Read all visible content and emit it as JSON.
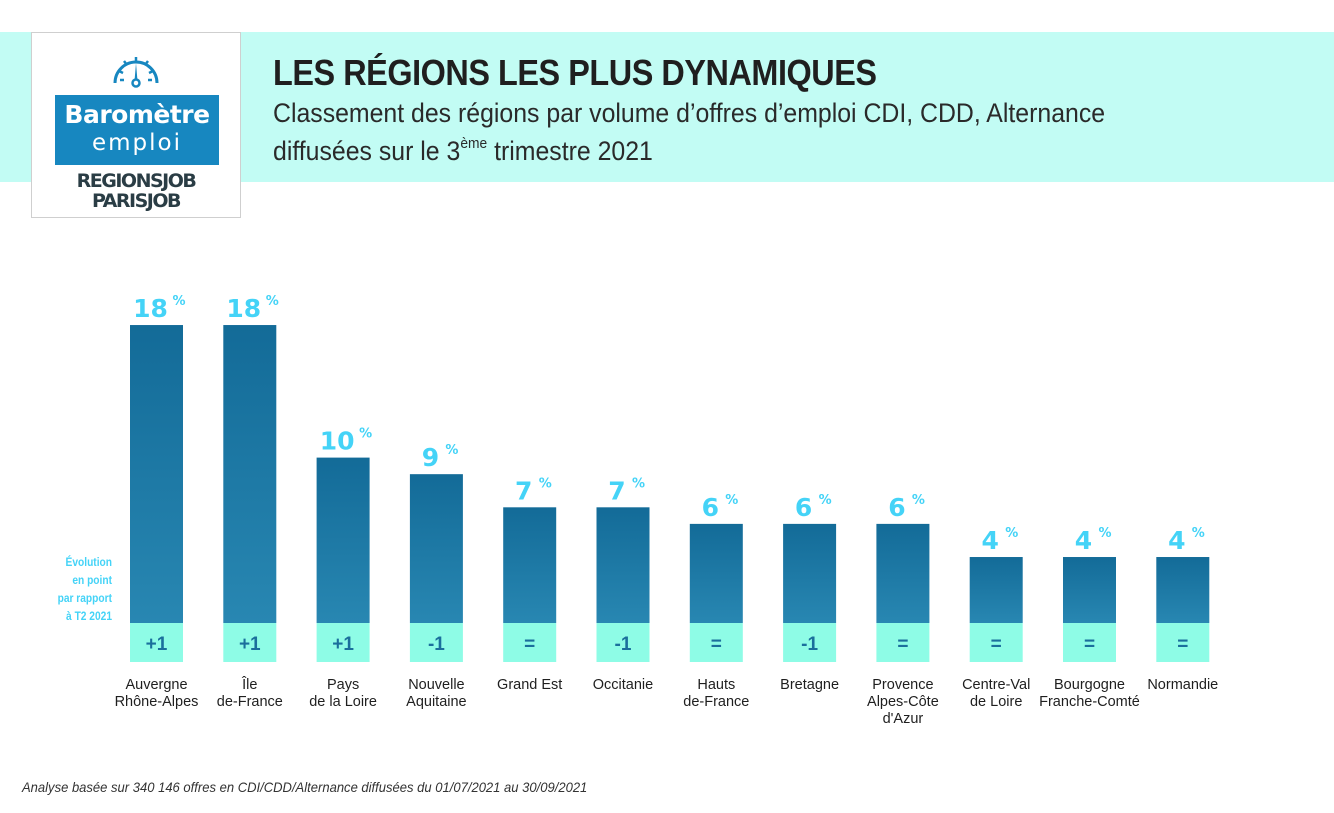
{
  "header": {
    "title": "LES RÉGIONS LES PLUS DYNAMIQUES",
    "subtitle_line1": "Classement des régions par volume d’offres d’emploi CDI, CDD, Alternance",
    "subtitle_line2_pre": "diffusées sur le 3",
    "subtitle_line2_sup": "ème",
    "subtitle_line2_post": " trimestre 2021"
  },
  "logo": {
    "icon": "gauge-icon",
    "line1": "Baromètre",
    "line2": "emploi",
    "brand1": "REGIONSJOB",
    "brand2": "PARISJOB"
  },
  "colors": {
    "header_band": "#c2fcf4",
    "bar_top": "#136b98",
    "bar_bottom": "#2887b2",
    "evolution_band": "#8efce6",
    "value_label": "#44d3f7",
    "evolution_text": "#1b6f9c"
  },
  "evolution_legend": [
    "Évolution",
    "en point",
    "par rapport",
    "à T2 2021"
  ],
  "chart_data": {
    "type": "bar",
    "title": "LES RÉGIONS LES PLUS DYNAMIQUES",
    "xlabel": "",
    "ylabel": "",
    "unit": "%",
    "categories": [
      [
        "Auvergne",
        "Rhône-Alpes"
      ],
      [
        "Île",
        "de-France"
      ],
      [
        "Pays",
        "de la Loire"
      ],
      [
        "Nouvelle",
        "Aquitaine"
      ],
      [
        "Grand Est"
      ],
      [
        "Occitanie"
      ],
      [
        "Hauts",
        "de-France"
      ],
      [
        "Bretagne"
      ],
      [
        "Provence",
        "Alpes-Côte",
        "d'Azur"
      ],
      [
        "Centre-Val",
        "de Loire"
      ],
      [
        "Bourgogne",
        "Franche-Comté"
      ],
      [
        "Normandie"
      ]
    ],
    "values": [
      18,
      18,
      10,
      9,
      7,
      7,
      6,
      6,
      6,
      4,
      4,
      4
    ],
    "evolution": [
      "+1",
      "+1",
      "+1",
      "-1",
      "=",
      "-1",
      "=",
      "-1",
      "=",
      "=",
      "=",
      "="
    ],
    "evolution_label": "Évolution en point par rapport à T2 2021",
    "grid": false,
    "legend": "none"
  },
  "footnote": "Analyse basée sur 340 146 offres en CDI/CDD/Alternance diffusées du 01/07/2021 au 30/09/2021"
}
